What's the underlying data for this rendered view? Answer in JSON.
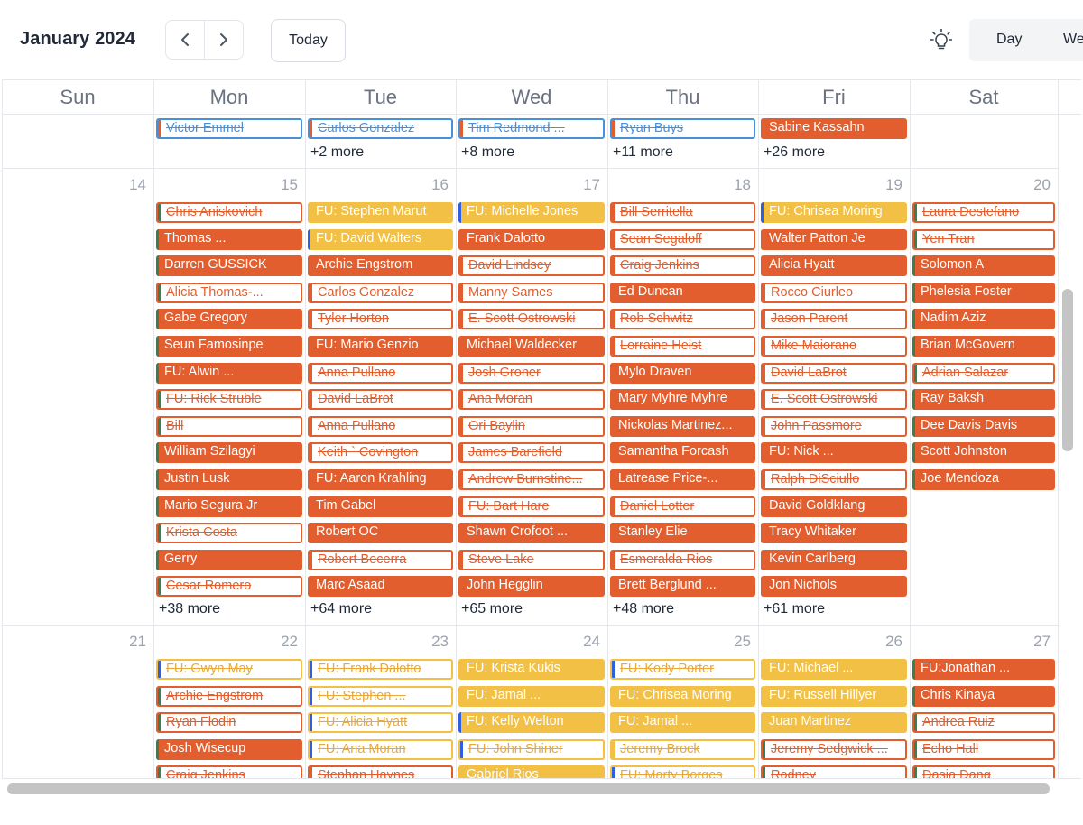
{
  "header": {
    "month_title": "January 2024",
    "today_label": "Today",
    "view_tabs": [
      "Day",
      "We"
    ]
  },
  "colors": {
    "orange": "#e25e2e",
    "yellow": "#f2c045",
    "blue": "#4a90d9",
    "green": "#3e7d4f",
    "side_blue": "#2f5ee0"
  },
  "weekdays": [
    "Sun",
    "Mon",
    "Tue",
    "Wed",
    "Thu",
    "Fri",
    "Sat"
  ],
  "weeks": [
    {
      "dates": [
        "",
        "",
        "",
        "",
        "",
        "",
        ""
      ],
      "events": [
        [],
        [
          {
            "t": "Victor Emmel",
            "k": "outline",
            "c": "blue",
            "s": "orange"
          }
        ],
        [
          {
            "t": "Carlos Gonzalez",
            "k": "outline",
            "c": "blue",
            "s": "orange"
          }
        ],
        [
          {
            "t": "Tim Redmond ...",
            "k": "outline",
            "c": "blue",
            "s": "orange"
          }
        ],
        [
          {
            "t": "Ryan Buys",
            "k": "outline",
            "c": "blue",
            "s": "orange"
          }
        ],
        [
          {
            "t": "Sabine Kassahn",
            "k": "filled",
            "c": "orange",
            "s": "orange"
          }
        ],
        []
      ],
      "more": [
        "",
        "",
        "+2 more",
        "+8 more",
        "+11 more",
        "+26 more",
        ""
      ]
    },
    {
      "dates": [
        "14",
        "15",
        "16",
        "17",
        "18",
        "19",
        "20"
      ],
      "events": [
        [],
        [
          {
            "t": "Chris Aniskovich",
            "k": "outline",
            "c": "orange",
            "s": "green"
          },
          {
            "t": "Thomas ...",
            "k": "filled",
            "c": "orange",
            "s": "green"
          },
          {
            "t": "Darren GUSSICK",
            "k": "filled",
            "c": "orange",
            "s": "green"
          },
          {
            "t": "Alicia Thomas-...",
            "k": "outline",
            "c": "orange",
            "s": "green"
          },
          {
            "t": "Gabe Gregory",
            "k": "filled",
            "c": "orange",
            "s": "green"
          },
          {
            "t": "Seun Famosinpe",
            "k": "filled",
            "c": "orange",
            "s": "green"
          },
          {
            "t": "FU: Alwin ...",
            "k": "filled",
            "c": "orange",
            "s": "green"
          },
          {
            "t": "FU: Rick Struble",
            "k": "outline",
            "c": "orange",
            "s": "green"
          },
          {
            "t": "Bill",
            "k": "outline",
            "c": "orange",
            "s": "green"
          },
          {
            "t": "William Szilagyi",
            "k": "filled",
            "c": "orange",
            "s": "green"
          },
          {
            "t": "Justin Lusk",
            "k": "filled",
            "c": "orange",
            "s": "green"
          },
          {
            "t": "Mario Segura Jr",
            "k": "filled",
            "c": "orange",
            "s": "green"
          },
          {
            "t": "Krista Costa",
            "k": "outline",
            "c": "orange",
            "s": "green"
          },
          {
            "t": "Gerry",
            "k": "filled",
            "c": "orange",
            "s": "green"
          },
          {
            "t": "Cesar Romero",
            "k": "outline",
            "c": "orange",
            "s": "green"
          }
        ],
        [
          {
            "t": "FU: Stephen Marut",
            "k": "filled",
            "c": "yellow",
            "s": "yellow"
          },
          {
            "t": "FU: David Walters",
            "k": "filled",
            "c": "yellow",
            "s": "blue"
          },
          {
            "t": "Archie Engstrom",
            "k": "filled",
            "c": "orange",
            "s": "orange"
          },
          {
            "t": "Carlos Gonzalez",
            "k": "outline",
            "c": "orange",
            "s": "orange"
          },
          {
            "t": "Tyler Horton",
            "k": "outline",
            "c": "orange",
            "s": "orange"
          },
          {
            "t": "FU: Mario Genzio",
            "k": "filled",
            "c": "orange",
            "s": "orange"
          },
          {
            "t": "Anna Pullano",
            "k": "outline",
            "c": "orange",
            "s": "orange"
          },
          {
            "t": "David LaBrot",
            "k": "outline",
            "c": "orange",
            "s": "orange"
          },
          {
            "t": "Anna Pullano",
            "k": "outline",
            "c": "orange",
            "s": "orange"
          },
          {
            "t": "Keith ` Covington",
            "k": "outline",
            "c": "orange",
            "s": "orange"
          },
          {
            "t": "FU: Aaron Krahling",
            "k": "filled",
            "c": "orange",
            "s": "orange"
          },
          {
            "t": "Tim Gabel",
            "k": "filled",
            "c": "orange",
            "s": "orange"
          },
          {
            "t": "Robert OC",
            "k": "filled",
            "c": "orange",
            "s": "orange"
          },
          {
            "t": "Robert Becerra",
            "k": "outline",
            "c": "orange",
            "s": "orange"
          },
          {
            "t": "Marc Asaad",
            "k": "filled",
            "c": "orange",
            "s": "orange"
          }
        ],
        [
          {
            "t": "FU: Michelle Jones",
            "k": "filled",
            "c": "yellow",
            "s": "blue"
          },
          {
            "t": "Frank Dalotto",
            "k": "filled",
            "c": "orange",
            "s": "orange"
          },
          {
            "t": "David Lindsey",
            "k": "outline",
            "c": "orange",
            "s": "orange"
          },
          {
            "t": "Manny Sarnes",
            "k": "outline",
            "c": "orange",
            "s": "orange"
          },
          {
            "t": "E. Scott Ostrowski",
            "k": "outline",
            "c": "orange",
            "s": "orange"
          },
          {
            "t": "Michael Waldecker",
            "k": "filled",
            "c": "orange",
            "s": "orange"
          },
          {
            "t": "Josh Groner",
            "k": "outline",
            "c": "orange",
            "s": "orange"
          },
          {
            "t": "Ana Moran",
            "k": "outline",
            "c": "orange",
            "s": "orange"
          },
          {
            "t": "Ori Baylin",
            "k": "outline",
            "c": "orange",
            "s": "orange"
          },
          {
            "t": "James Barefield",
            "k": "outline",
            "c": "orange",
            "s": "orange"
          },
          {
            "t": "Andrew Burnstine...",
            "k": "outline",
            "c": "orange",
            "s": "orange"
          },
          {
            "t": "FU: Bart Hare",
            "k": "outline",
            "c": "orange",
            "s": "orange"
          },
          {
            "t": "Shawn Crofoot ...",
            "k": "filled",
            "c": "orange",
            "s": "orange"
          },
          {
            "t": "Steve Lake",
            "k": "outline",
            "c": "orange",
            "s": "orange"
          },
          {
            "t": "John Hegglin",
            "k": "filled",
            "c": "orange",
            "s": "orange"
          }
        ],
        [
          {
            "t": "Bill Serritella",
            "k": "outline",
            "c": "orange",
            "s": "orange"
          },
          {
            "t": "Sean Segaloff",
            "k": "outline",
            "c": "orange",
            "s": "orange"
          },
          {
            "t": "Craig Jenkins",
            "k": "outline",
            "c": "orange",
            "s": "orange"
          },
          {
            "t": "Ed Duncan",
            "k": "filled",
            "c": "orange",
            "s": "orange"
          },
          {
            "t": "Rob Schwitz",
            "k": "outline",
            "c": "orange",
            "s": "orange"
          },
          {
            "t": "Lorraine Heist",
            "k": "outline",
            "c": "orange",
            "s": "orange"
          },
          {
            "t": "Mylo Draven",
            "k": "filled",
            "c": "orange",
            "s": "orange"
          },
          {
            "t": "Mary Myhre Myhre",
            "k": "filled",
            "c": "orange",
            "s": "orange"
          },
          {
            "t": "Nickolas Martinez...",
            "k": "filled",
            "c": "orange",
            "s": "orange"
          },
          {
            "t": "Samantha Forcash",
            "k": "filled",
            "c": "orange",
            "s": "orange"
          },
          {
            "t": "Latrease Price-...",
            "k": "filled",
            "c": "orange",
            "s": "orange"
          },
          {
            "t": "Daniel Lotter",
            "k": "outline",
            "c": "orange",
            "s": "orange"
          },
          {
            "t": "Stanley Elie",
            "k": "filled",
            "c": "orange",
            "s": "orange"
          },
          {
            "t": "Esmeralda Rios",
            "k": "outline",
            "c": "orange",
            "s": "orange"
          },
          {
            "t": "Brett Berglund ...",
            "k": "filled",
            "c": "orange",
            "s": "orange"
          }
        ],
        [
          {
            "t": "FU: Chrisea Moring",
            "k": "filled",
            "c": "yellow",
            "s": "blue"
          },
          {
            "t": "Walter Patton Je",
            "k": "filled",
            "c": "orange",
            "s": "orange"
          },
          {
            "t": "Alicia Hyatt",
            "k": "filled",
            "c": "orange",
            "s": "orange"
          },
          {
            "t": "Rocco Ciurleo",
            "k": "outline",
            "c": "orange",
            "s": "orange"
          },
          {
            "t": "Jason Parent",
            "k": "outline",
            "c": "orange",
            "s": "orange"
          },
          {
            "t": "Mike Maiorano",
            "k": "outline",
            "c": "orange",
            "s": "orange"
          },
          {
            "t": "David LaBrot",
            "k": "outline",
            "c": "orange",
            "s": "orange"
          },
          {
            "t": "E. Scott Ostrowski",
            "k": "outline",
            "c": "orange",
            "s": "orange"
          },
          {
            "t": "John Passmore",
            "k": "outline",
            "c": "orange",
            "s": "orange"
          },
          {
            "t": "FU: Nick ...",
            "k": "filled",
            "c": "orange",
            "s": "orange"
          },
          {
            "t": "Ralph DiSciullo",
            "k": "outline",
            "c": "orange",
            "s": "orange"
          },
          {
            "t": "David Goldklang",
            "k": "filled",
            "c": "orange",
            "s": "orange"
          },
          {
            "t": "Tracy Whitaker",
            "k": "filled",
            "c": "orange",
            "s": "orange"
          },
          {
            "t": "Kevin Carlberg",
            "k": "filled",
            "c": "orange",
            "s": "orange"
          },
          {
            "t": "Jon Nichols",
            "k": "filled",
            "c": "orange",
            "s": "orange"
          }
        ],
        [
          {
            "t": "Laura Destefano",
            "k": "outline",
            "c": "orange",
            "s": "green"
          },
          {
            "t": "Yen Tran",
            "k": "outline",
            "c": "orange",
            "s": "green"
          },
          {
            "t": "Solomon A",
            "k": "filled",
            "c": "orange",
            "s": "green"
          },
          {
            "t": "Phelesia Foster",
            "k": "filled",
            "c": "orange",
            "s": "green"
          },
          {
            "t": "Nadim Aziz",
            "k": "filled",
            "c": "orange",
            "s": "green"
          },
          {
            "t": "Brian McGovern",
            "k": "filled",
            "c": "orange",
            "s": "green"
          },
          {
            "t": "Adrian Salazar",
            "k": "outline",
            "c": "orange",
            "s": "green"
          },
          {
            "t": "Ray Baksh",
            "k": "filled",
            "c": "orange",
            "s": "green"
          },
          {
            "t": "Dee Davis Davis",
            "k": "filled",
            "c": "orange",
            "s": "green"
          },
          {
            "t": "Scott Johnston",
            "k": "filled",
            "c": "orange",
            "s": "green"
          },
          {
            "t": "Joe Mendoza",
            "k": "filled",
            "c": "orange",
            "s": "green"
          }
        ]
      ],
      "more": [
        "",
        "+38 more",
        "+64 more",
        "+65 more",
        "+48 more",
        "+61 more",
        ""
      ]
    },
    {
      "dates": [
        "21",
        "22",
        "23",
        "24",
        "25",
        "26",
        "27"
      ],
      "events": [
        [],
        [
          {
            "t": "FU: Gwyn May",
            "k": "outline",
            "c": "yellow",
            "s": "blue"
          },
          {
            "t": "Archie Engstrom",
            "k": "outline",
            "c": "orange",
            "s": "green"
          },
          {
            "t": "Ryan Flodin",
            "k": "outline",
            "c": "orange",
            "s": "green"
          },
          {
            "t": "Josh Wisecup",
            "k": "filled",
            "c": "orange",
            "s": "green"
          },
          {
            "t": "Craig Jenkins",
            "k": "outline",
            "c": "orange",
            "s": "green"
          }
        ],
        [
          {
            "t": "FU: Frank Dalotto",
            "k": "outline",
            "c": "yellow",
            "s": "blue"
          },
          {
            "t": "FU: Stephen ...",
            "k": "outline",
            "c": "yellow",
            "s": "blue"
          },
          {
            "t": "FU: Alicia Hyatt",
            "k": "outline",
            "c": "yellow",
            "s": "blue"
          },
          {
            "t": "FU: Ana Moran",
            "k": "outline",
            "c": "yellow",
            "s": "blue"
          },
          {
            "t": "Stephan Haynes",
            "k": "outline",
            "c": "orange",
            "s": "orange"
          }
        ],
        [
          {
            "t": "FU: Krista Kukis",
            "k": "filled",
            "c": "yellow",
            "s": "yellow"
          },
          {
            "t": "FU: Jamal ...",
            "k": "filled",
            "c": "yellow",
            "s": "yellow"
          },
          {
            "t": "FU: Kelly Welton",
            "k": "filled",
            "c": "yellow",
            "s": "blue"
          },
          {
            "t": "FU: John Shiner",
            "k": "outline",
            "c": "yellow",
            "s": "blue"
          },
          {
            "t": "Gabriel Rios",
            "k": "filled",
            "c": "yellow",
            "s": "yellow"
          }
        ],
        [
          {
            "t": "FU: Kody Porter",
            "k": "outline",
            "c": "yellow",
            "s": "blue"
          },
          {
            "t": "FU: Chrisea Moring",
            "k": "filled",
            "c": "yellow",
            "s": "yellow"
          },
          {
            "t": "FU: Jamal ...",
            "k": "filled",
            "c": "yellow",
            "s": "yellow"
          },
          {
            "t": "Jeremy Brock",
            "k": "outline",
            "c": "yellow",
            "s": "yellow"
          },
          {
            "t": "FU: Marty Borges",
            "k": "outline",
            "c": "yellow",
            "s": "blue"
          }
        ],
        [
          {
            "t": "FU: Michael ...",
            "k": "filled",
            "c": "yellow",
            "s": "yellow"
          },
          {
            "t": "FU: Russell Hillyer",
            "k": "filled",
            "c": "yellow",
            "s": "yellow"
          },
          {
            "t": "Juan Martinez",
            "k": "filled",
            "c": "yellow",
            "s": "yellow"
          },
          {
            "t": "Jeremy Sedgwick ...",
            "k": "outline",
            "c": "orange",
            "s": "green"
          },
          {
            "t": "Rodney",
            "k": "outline",
            "c": "orange",
            "s": "green"
          }
        ],
        [
          {
            "t": "FU:Jonathan ...",
            "k": "filled",
            "c": "orange",
            "s": "green"
          },
          {
            "t": "Chris Kinaya",
            "k": "filled",
            "c": "orange",
            "s": "green"
          },
          {
            "t": "Andrea Ruiz",
            "k": "outline",
            "c": "orange",
            "s": "green"
          },
          {
            "t": "Echo Hall",
            "k": "outline",
            "c": "orange",
            "s": "green"
          },
          {
            "t": "Dasia Dang",
            "k": "outline",
            "c": "orange",
            "s": "green"
          }
        ]
      ],
      "more": [
        "",
        "",
        "",
        "",
        "",
        "",
        ""
      ]
    }
  ]
}
